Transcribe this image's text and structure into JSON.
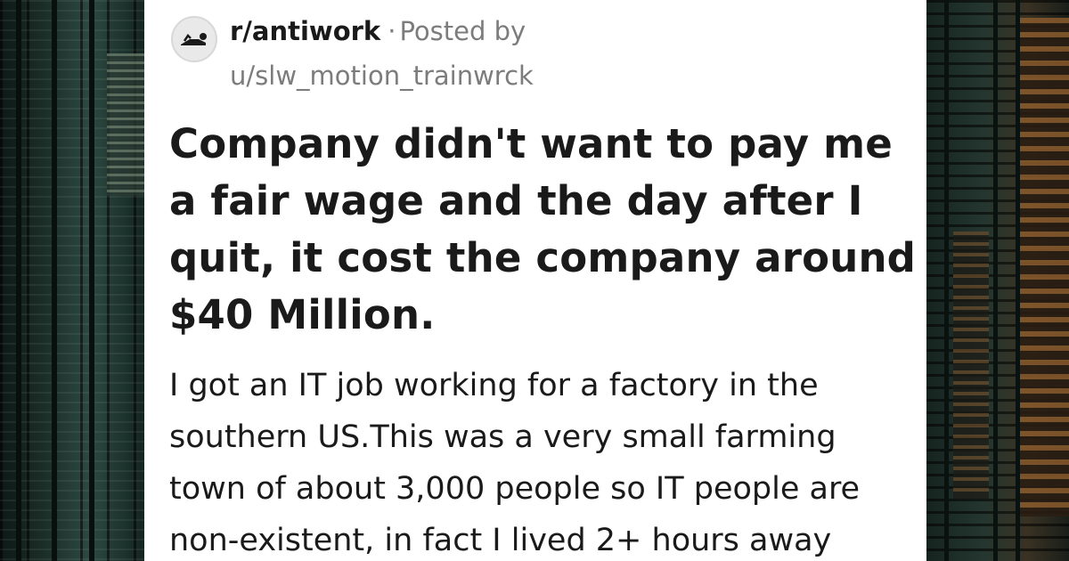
{
  "post": {
    "subreddit": "r/antiwork",
    "separator": "·",
    "posted_by_label": "Posted by",
    "username": "u/slw_motion_trainwrck",
    "subreddit_icon": "reclining-person-icon",
    "title_lines": [
      "Company didn't want to pay me",
      "a fair wage and the day after I",
      "quit, it cost the company around",
      "$40 Million."
    ],
    "body_lines": [
      "I got an IT job working for a factory in the",
      "southern US.This was a very small farming",
      "town of about 3,000 people so IT people are",
      "non-existent, in fact I lived 2+ hours away"
    ]
  },
  "colors": {
    "card_background": "#ffffff",
    "text_primary": "#1a1a1b",
    "text_muted": "#7c7c7c"
  }
}
